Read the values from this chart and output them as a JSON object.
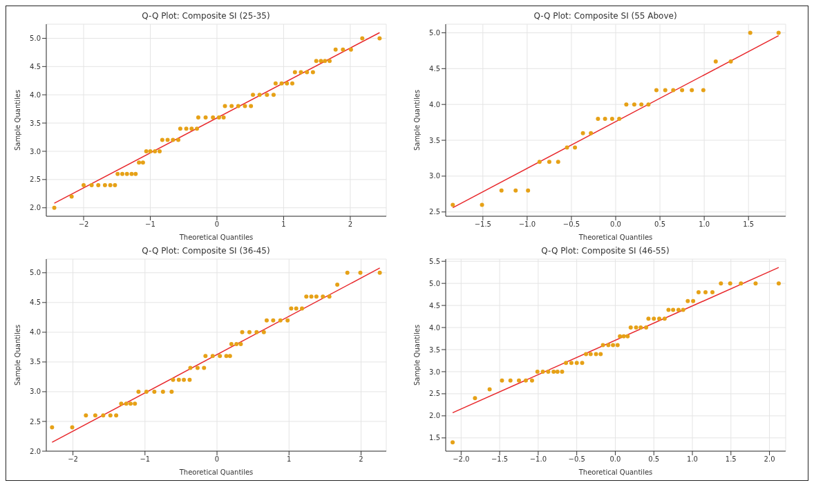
{
  "chart_data": [
    {
      "type": "scatter",
      "title": "Q-Q Plot: Composite SI (25-35)",
      "xlabel": "Theoretical Quantiles",
      "ylabel": "Sample Quantiles",
      "grid": true,
      "legend": false,
      "xlim": [
        -2.56,
        2.54
      ],
      "ylim": [
        1.85,
        5.25
      ],
      "xticks": [
        {
          "value": -2,
          "label": "−2"
        },
        {
          "value": -1,
          "label": "−1"
        },
        0,
        1,
        2
      ],
      "yticks": [
        {
          "value": 2,
          "label": "2.0"
        },
        2.5,
        {
          "value": 3,
          "label": "3.0"
        },
        3.5,
        {
          "value": 4,
          "label": "4.0"
        },
        4.5,
        {
          "value": 5,
          "label": "5.0"
        }
      ],
      "series": [
        {
          "marker": "circle",
          "color": "#e6a117",
          "x": [
            -2.44,
            -2.18,
            -2.0,
            -1.88,
            -1.78,
            -1.68,
            -1.6,
            -1.53,
            -1.49,
            -1.42,
            -1.35,
            -1.28,
            -1.22,
            -1.17,
            -1.11,
            -1.06,
            -1.0,
            -0.93,
            -0.86,
            -0.82,
            -0.74,
            -0.66,
            -0.58,
            -0.55,
            -0.46,
            -0.38,
            -0.3,
            -0.28,
            -0.17,
            -0.06,
            0.03,
            0.1,
            0.12,
            0.22,
            0.32,
            0.42,
            0.51,
            0.54,
            0.64,
            0.75,
            0.85,
            0.88,
            0.97,
            1.05,
            1.13,
            1.17,
            1.26,
            1.35,
            1.44,
            1.49,
            1.56,
            1.62,
            1.69,
            1.78,
            1.89,
            2.01,
            2.18,
            2.44
          ],
          "values": [
            2.0,
            2.2,
            2.4,
            2.4,
            2.4,
            2.4,
            2.4,
            2.4,
            2.6,
            2.6,
            2.6,
            2.6,
            2.6,
            2.8,
            2.8,
            3.0,
            3.0,
            3.0,
            3.0,
            3.2,
            3.2,
            3.2,
            3.2,
            3.4,
            3.4,
            3.4,
            3.4,
            3.6,
            3.6,
            3.6,
            3.6,
            3.6,
            3.8,
            3.8,
            3.8,
            3.8,
            3.8,
            4.0,
            4.0,
            4.0,
            4.0,
            4.2,
            4.2,
            4.2,
            4.2,
            4.4,
            4.4,
            4.4,
            4.4,
            4.6,
            4.6,
            4.6,
            4.6,
            4.8,
            4.8,
            4.8,
            5.0,
            5.0
          ]
        },
        {
          "type": "line",
          "marker": "none",
          "color": "#e8272b",
          "x": [
            -2.44,
            2.44
          ],
          "values": [
            2.08,
            5.1
          ]
        }
      ]
    },
    {
      "type": "scatter",
      "title": "Q-Q Plot: Composite SI (55 Above)",
      "xlabel": "Theoretical Quantiles",
      "ylabel": "Sample Quantiles",
      "grid": true,
      "legend": false,
      "xlim": [
        -1.92,
        1.92
      ],
      "ylim": [
        2.44,
        5.12
      ],
      "xticks": [
        {
          "value": -1.5,
          "label": "−1.5"
        },
        {
          "value": -1,
          "label": "−1.0"
        },
        {
          "value": -0.5,
          "label": "−0.5"
        },
        {
          "value": 0,
          "label": "0.0"
        },
        0.5,
        {
          "value": 1,
          "label": "1.0"
        },
        1.5
      ],
      "yticks": [
        2.5,
        {
          "value": 3,
          "label": "3.0"
        },
        3.5,
        {
          "value": 4,
          "label": "4.0"
        },
        4.5,
        {
          "value": 5,
          "label": "5.0"
        }
      ],
      "series": [
        {
          "marker": "circle",
          "color": "#e6a117",
          "x": [
            -1.84,
            -1.51,
            -1.29,
            -1.13,
            -0.99,
            -0.86,
            -0.75,
            -0.65,
            -0.55,
            -0.46,
            -0.37,
            -0.28,
            -0.2,
            -0.12,
            -0.04,
            0.04,
            0.12,
            0.21,
            0.29,
            0.37,
            0.46,
            0.56,
            0.65,
            0.75,
            0.86,
            0.99,
            1.13,
            1.3,
            1.52,
            1.84
          ],
          "values": [
            2.6,
            2.6,
            2.8,
            2.8,
            2.8,
            3.2,
            3.2,
            3.2,
            3.4,
            3.4,
            3.6,
            3.6,
            3.8,
            3.8,
            3.8,
            3.8,
            4.0,
            4.0,
            4.0,
            4.0,
            4.2,
            4.2,
            4.2,
            4.2,
            4.2,
            4.2,
            4.6,
            4.6,
            5.0,
            5.0
          ]
        },
        {
          "type": "line",
          "marker": "none",
          "color": "#e8272b",
          "x": [
            -1.84,
            1.84
          ],
          "values": [
            2.56,
            4.96
          ]
        }
      ]
    },
    {
      "type": "scatter",
      "title": "Q-Q Plot: Composite SI (36-45)",
      "xlabel": "Theoretical Quantiles",
      "ylabel": "Sample Quantiles",
      "grid": true,
      "legend": false,
      "xlim": [
        -2.37,
        2.35
      ],
      "ylim": [
        2.0,
        5.23
      ],
      "xticks": [
        {
          "value": -2,
          "label": "−2"
        },
        {
          "value": -1,
          "label": "−1"
        },
        0,
        1,
        2
      ],
      "yticks": [
        {
          "value": 2,
          "label": "2.0"
        },
        2.5,
        {
          "value": 3,
          "label": "3.0"
        },
        3.5,
        {
          "value": 4,
          "label": "4.0"
        },
        4.5,
        {
          "value": 5,
          "label": "5.0"
        }
      ],
      "series": [
        {
          "marker": "circle",
          "color": "#e6a117",
          "x": [
            -2.29,
            -2.01,
            -1.82,
            -1.69,
            -1.58,
            -1.48,
            -1.4,
            -1.33,
            -1.26,
            -1.2,
            -1.14,
            -1.09,
            -0.98,
            -0.87,
            -0.75,
            -0.63,
            -0.61,
            -0.53,
            -0.46,
            -0.38,
            -0.37,
            -0.27,
            -0.18,
            -0.16,
            -0.06,
            0.04,
            0.13,
            0.18,
            0.2,
            0.27,
            0.33,
            0.35,
            0.45,
            0.55,
            0.65,
            0.69,
            0.78,
            0.88,
            0.98,
            1.03,
            1.1,
            1.18,
            1.24,
            1.31,
            1.38,
            1.47,
            1.56,
            1.67,
            1.81,
            1.99,
            2.26
          ],
          "values": [
            2.4,
            2.4,
            2.6,
            2.6,
            2.6,
            2.6,
            2.6,
            2.8,
            2.8,
            2.8,
            2.8,
            3.0,
            3.0,
            3.0,
            3.0,
            3.0,
            3.2,
            3.2,
            3.2,
            3.2,
            3.4,
            3.4,
            3.4,
            3.6,
            3.6,
            3.6,
            3.6,
            3.6,
            3.8,
            3.8,
            3.8,
            4.0,
            4.0,
            4.0,
            4.0,
            4.2,
            4.2,
            4.2,
            4.2,
            4.4,
            4.4,
            4.4,
            4.6,
            4.6,
            4.6,
            4.6,
            4.6,
            4.8,
            5.0,
            5.0,
            5.0
          ]
        },
        {
          "type": "line",
          "marker": "none",
          "color": "#e8272b",
          "x": [
            -2.29,
            2.26
          ],
          "values": [
            2.15,
            5.08
          ]
        }
      ]
    },
    {
      "type": "scatter",
      "title": "Q-Q Plot: Composite SI (46-55)",
      "xlabel": "Theoretical Quantiles",
      "ylabel": "Sample Quantiles",
      "grid": true,
      "legend": false,
      "xlim": [
        -2.2,
        2.21
      ],
      "ylim": [
        1.2,
        5.55
      ],
      "xticks": [
        {
          "value": -2,
          "label": "−2.0"
        },
        {
          "value": -1.5,
          "label": "−1.5"
        },
        {
          "value": -1,
          "label": "−1.0"
        },
        {
          "value": -0.5,
          "label": "−0.5"
        },
        {
          "value": 0,
          "label": "0.0"
        },
        0.5,
        {
          "value": 1,
          "label": "1.0"
        },
        1.5,
        {
          "value": 2,
          "label": "2.0"
        }
      ],
      "yticks": [
        1.5,
        {
          "value": 2,
          "label": "2.0"
        },
        2.5,
        {
          "value": 3,
          "label": "3.0"
        },
        3.5,
        {
          "value": 4,
          "label": "4.0"
        },
        4.5,
        {
          "value": 5,
          "label": "5.0"
        },
        5.5
      ],
      "series": [
        {
          "marker": "circle",
          "color": "#e6a117",
          "x": [
            -2.11,
            -1.82,
            -1.63,
            -1.47,
            -1.36,
            -1.25,
            -1.16,
            -1.08,
            -1.01,
            -0.94,
            -0.87,
            -0.8,
            -0.75,
            -0.69,
            -0.64,
            -0.57,
            -0.5,
            -0.43,
            -0.38,
            -0.32,
            -0.25,
            -0.19,
            -0.16,
            -0.09,
            -0.03,
            0.03,
            0.06,
            0.11,
            0.16,
            0.2,
            0.27,
            0.33,
            0.4,
            0.43,
            0.5,
            0.57,
            0.64,
            0.69,
            0.75,
            0.82,
            0.88,
            0.94,
            1.01,
            1.08,
            1.17,
            1.26,
            1.37,
            1.49,
            1.63,
            1.82,
            2.12
          ],
          "values": [
            1.4,
            2.4,
            2.6,
            2.8,
            2.8,
            2.8,
            2.8,
            2.8,
            3.0,
            3.0,
            3.0,
            3.0,
            3.0,
            3.0,
            3.2,
            3.2,
            3.2,
            3.2,
            3.4,
            3.4,
            3.4,
            3.4,
            3.6,
            3.6,
            3.6,
            3.6,
            3.8,
            3.8,
            3.8,
            4.0,
            4.0,
            4.0,
            4.0,
            4.2,
            4.2,
            4.2,
            4.2,
            4.4,
            4.4,
            4.4,
            4.4,
            4.6,
            4.6,
            4.8,
            4.8,
            4.8,
            5.0,
            5.0,
            5.0,
            5.0,
            5.0
          ]
        },
        {
          "type": "line",
          "marker": "none",
          "color": "#e8272b",
          "x": [
            -2.11,
            2.12
          ],
          "values": [
            2.07,
            5.36
          ]
        }
      ]
    }
  ]
}
